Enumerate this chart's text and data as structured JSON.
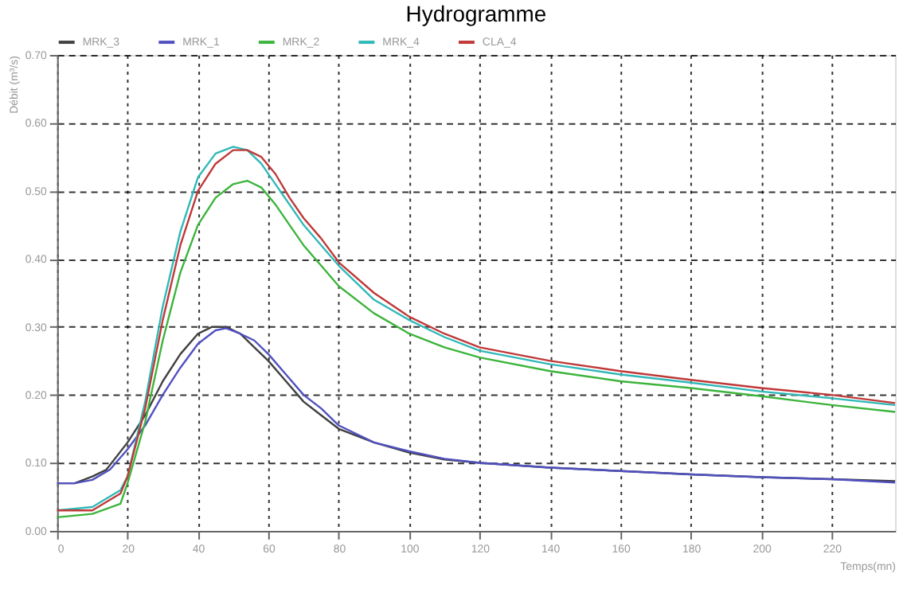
{
  "chart_data": {
    "type": "line",
    "title": "Hydrogramme",
    "xlabel": "Temps(mn)",
    "ylabel": "Débit (m³/s)",
    "xlim": [
      0,
      238
    ],
    "xticks": [
      0,
      20,
      40,
      60,
      80,
      100,
      120,
      140,
      160,
      180,
      200,
      220
    ],
    "ylim": [
      0,
      0.7
    ],
    "yticks": [
      {
        "value": 0,
        "label": "0.00"
      },
      {
        "value": 0.1,
        "label": "0.10"
      },
      {
        "value": 0.2,
        "label": "0.20"
      },
      {
        "value": 0.3,
        "label": "0.30"
      },
      {
        "value": 0.4,
        "label": "0.40"
      },
      {
        "value": 0.5,
        "label": "0.50"
      },
      {
        "value": 0.6,
        "label": "0.60"
      },
      {
        "value": 0.7,
        "label": "0.70"
      }
    ],
    "grid": true,
    "legend": "top",
    "line_style": "solid",
    "marker": "none",
    "series": [
      {
        "name": "MRK_3",
        "color": "#404040",
        "x": [
          0,
          5,
          10,
          14,
          20,
          25,
          30,
          35,
          40,
          44,
          48,
          52,
          56,
          60,
          65,
          70,
          75,
          80,
          90,
          100,
          110,
          120,
          140,
          160,
          180,
          200,
          220,
          238
        ],
        "values": [
          0.07,
          0.07,
          0.08,
          0.09,
          0.13,
          0.17,
          0.22,
          0.26,
          0.29,
          0.3,
          0.3,
          0.29,
          0.27,
          0.25,
          0.22,
          0.19,
          0.17,
          0.15,
          0.13,
          0.115,
          0.105,
          0.1,
          0.093,
          0.088,
          0.083,
          0.079,
          0.076,
          0.073
        ]
      },
      {
        "name": "MRK_1",
        "color": "#5050c0",
        "x": [
          0,
          5,
          10,
          15,
          20,
          25,
          30,
          35,
          40,
          45,
          48,
          52,
          56,
          60,
          65,
          70,
          75,
          80,
          90,
          100,
          110,
          120,
          140,
          160,
          180,
          200,
          220,
          238
        ],
        "values": [
          0.07,
          0.07,
          0.075,
          0.09,
          0.12,
          0.155,
          0.2,
          0.24,
          0.275,
          0.295,
          0.298,
          0.29,
          0.28,
          0.26,
          0.23,
          0.2,
          0.18,
          0.155,
          0.13,
          0.117,
          0.106,
          0.1,
          0.093,
          0.088,
          0.083,
          0.079,
          0.076,
          0.071
        ]
      },
      {
        "name": "MRK_2",
        "color": "#3cb43c",
        "x": [
          0,
          10,
          18,
          20,
          25,
          30,
          35,
          40,
          45,
          50,
          54,
          58,
          62,
          66,
          70,
          75,
          80,
          90,
          100,
          110,
          120,
          140,
          160,
          180,
          200,
          220,
          238
        ],
        "values": [
          0.02,
          0.025,
          0.04,
          0.07,
          0.16,
          0.28,
          0.38,
          0.45,
          0.49,
          0.51,
          0.515,
          0.505,
          0.48,
          0.45,
          0.42,
          0.39,
          0.36,
          0.32,
          0.29,
          0.27,
          0.255,
          0.235,
          0.22,
          0.21,
          0.198,
          0.185,
          0.175
        ]
      },
      {
        "name": "MRK_4",
        "color": "#30b8b8",
        "x": [
          0,
          10,
          18,
          20,
          25,
          30,
          35,
          40,
          45,
          50,
          54,
          58,
          62,
          66,
          70,
          75,
          80,
          90,
          100,
          110,
          120,
          140,
          160,
          180,
          200,
          220,
          238
        ],
        "values": [
          0.03,
          0.035,
          0.06,
          0.08,
          0.19,
          0.33,
          0.44,
          0.52,
          0.555,
          0.565,
          0.56,
          0.54,
          0.51,
          0.48,
          0.45,
          0.42,
          0.39,
          0.34,
          0.31,
          0.285,
          0.265,
          0.245,
          0.23,
          0.218,
          0.205,
          0.195,
          0.185
        ]
      },
      {
        "name": "CLA_4",
        "color": "#c03838",
        "x": [
          0,
          10,
          18,
          20,
          25,
          30,
          35,
          40,
          45,
          50,
          54,
          58,
          62,
          66,
          70,
          75,
          80,
          90,
          100,
          110,
          120,
          140,
          160,
          180,
          200,
          220,
          238
        ],
        "values": [
          0.03,
          0.03,
          0.055,
          0.08,
          0.18,
          0.31,
          0.42,
          0.5,
          0.54,
          0.56,
          0.56,
          0.55,
          0.525,
          0.49,
          0.46,
          0.43,
          0.395,
          0.35,
          0.315,
          0.29,
          0.27,
          0.25,
          0.235,
          0.222,
          0.21,
          0.2,
          0.188
        ]
      }
    ]
  }
}
